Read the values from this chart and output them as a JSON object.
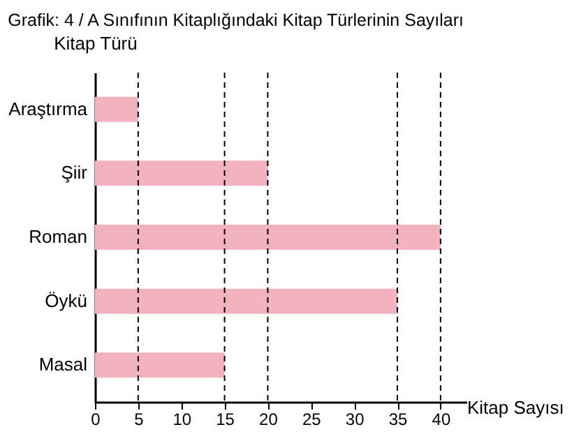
{
  "chart_data": {
    "type": "bar",
    "orientation": "horizontal",
    "title": "Grafik: 4 / A Sınıfının Kitaplığındaki Kitap Türlerinin Sayıları",
    "xlabel": "Kitap Sayısı",
    "ylabel": "Kitap Türü",
    "categories": [
      "Araştırma",
      "Şiir",
      "Roman",
      "Öykü",
      "Masal"
    ],
    "values": [
      5,
      20,
      40,
      35,
      15
    ],
    "color": "#f2b3bf",
    "xlim": [
      0,
      43
    ],
    "xticks": [
      0,
      5,
      10,
      15,
      20,
      25,
      30,
      35,
      40
    ],
    "grid": false,
    "ref_lines": [
      {
        "axis": "x",
        "value": 5,
        "line_style": "dashed",
        "color": "#000000"
      },
      {
        "axis": "x",
        "value": 20,
        "line_style": "dashed",
        "color": "#000000"
      },
      {
        "axis": "x",
        "value": 40,
        "line_style": "dashed",
        "color": "#000000"
      },
      {
        "axis": "x",
        "value": 35,
        "line_style": "dashed",
        "color": "#000000"
      },
      {
        "axis": "x",
        "value": 15,
        "line_style": "dashed",
        "color": "#000000"
      }
    ]
  }
}
